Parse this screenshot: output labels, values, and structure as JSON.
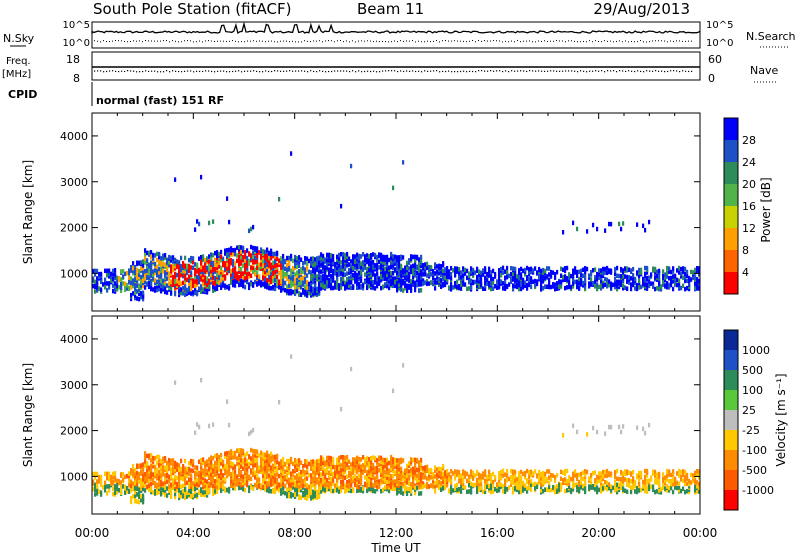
{
  "header": {
    "station": "South Pole Station (fitACF)",
    "beam": "Beam 11",
    "date": "29/Aug/2013"
  },
  "panels": {
    "nsky_label": "N.Sky",
    "nsearch_label": "N.Search",
    "nsky_ticks": [
      "10^5",
      "10^0"
    ],
    "nsearch_ticks": [
      "10^5",
      "10^0"
    ],
    "freq_label_1": "Freq.",
    "freq_label_2": "[MHz]",
    "freq_ticks": [
      "18",
      "8"
    ],
    "nave_label": "Nave",
    "nave_ticks": [
      "60",
      "0"
    ],
    "cpid_label": "CPID",
    "cpid_text": "normal (fast) 151 RF"
  },
  "chart_data": [
    {
      "type": "heatmap",
      "name": "power",
      "ylabel": "Slant Range [km]",
      "xlabel": "",
      "x_ticks": [
        "00:00",
        "04:00",
        "08:00",
        "12:00",
        "16:00",
        "20:00",
        "00:00"
      ],
      "y_ticks": [
        1000,
        2000,
        3000,
        4000
      ],
      "xlim_hours": [
        0,
        24
      ],
      "ylim_km": [
        180,
        4500
      ],
      "colorbar": {
        "label": "Power [dB]",
        "ticks": [
          "4",
          "8",
          "12",
          "16",
          "20",
          "24",
          "28"
        ],
        "colors": [
          "#0000ff",
          "#1e50c8",
          "#2d8c5a",
          "#50b44b",
          "#c8d200",
          "#ffa000",
          "#ff6400",
          "#ff0000"
        ]
      }
    },
    {
      "type": "heatmap",
      "name": "velocity",
      "ylabel": "Slant Range [km]",
      "xlabel": "Time UT",
      "x_ticks": [
        "00:00",
        "04:00",
        "08:00",
        "12:00",
        "16:00",
        "20:00",
        "00:00"
      ],
      "y_ticks": [
        1000,
        2000,
        3000,
        4000
      ],
      "xlim_hours": [
        0,
        24
      ],
      "ylim_km": [
        180,
        4500
      ],
      "colorbar": {
        "label": "Velocity [m s⁻¹]",
        "ticks": [
          "1000",
          "500",
          "100",
          "25",
          "-25",
          "-100",
          "-500",
          "-1000"
        ],
        "colors": [
          "#0a2896",
          "#1e50c8",
          "#2d8c5a",
          "#5ac83c",
          "#bebebe",
          "#ffc800",
          "#ff8c00",
          "#ff5a00",
          "#ff0000"
        ]
      }
    }
  ]
}
